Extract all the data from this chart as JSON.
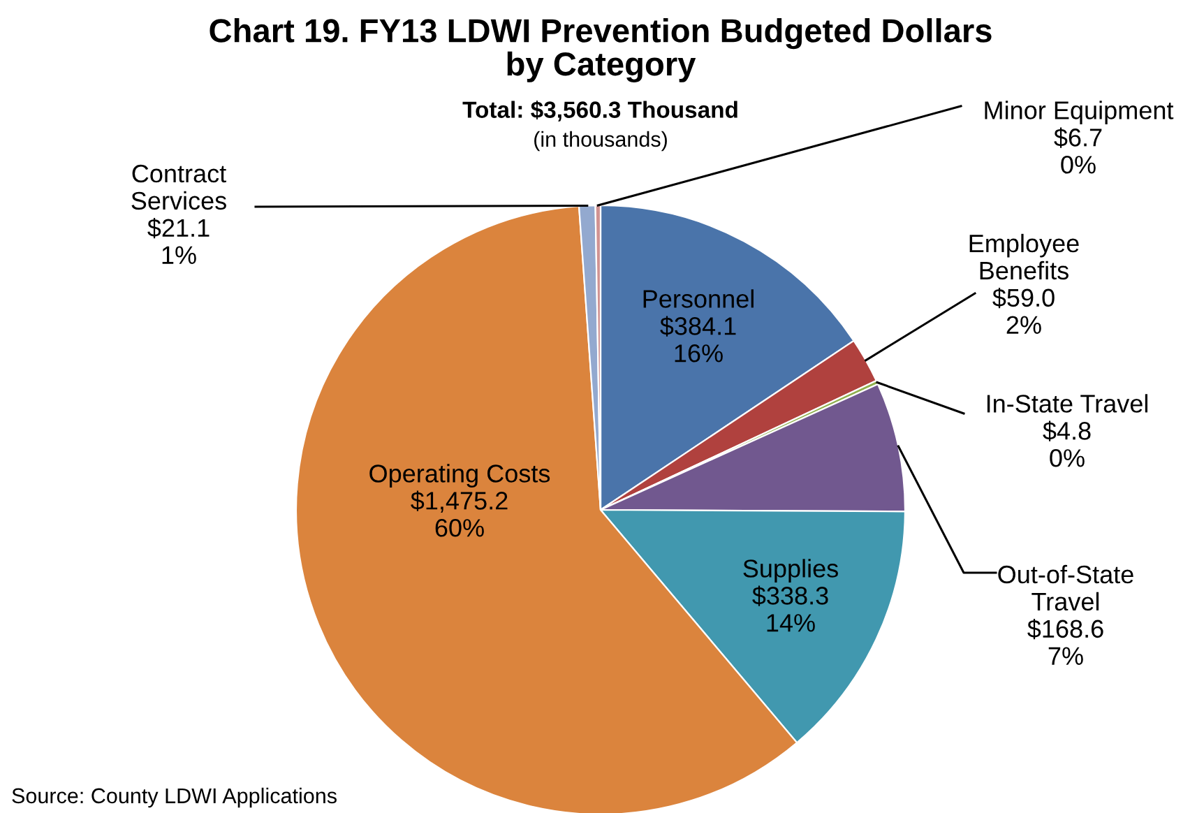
{
  "chart_data": {
    "type": "pie",
    "title": "Chart 19. FY13 LDWI Prevention Budgeted Dollars\nby Category",
    "subtitle": "Total: $3,560.3 Thousand",
    "annotations": [
      "(in thousands)",
      "Source: County LDWI Applications"
    ],
    "categories": [
      "Personnel",
      "Employee\nBenefits",
      "In-State Travel",
      "Out-of-State\nTravel",
      "Supplies",
      "Operating Costs",
      "Contract\nServices",
      "Minor Equipment"
    ],
    "values": [
      384.1,
      59.0,
      4.8,
      168.6,
      338.3,
      1475.2,
      21.1,
      6.7
    ],
    "value_labels": [
      "$384.1\n16%",
      "$59.0\n2%",
      "$4.8\n0%",
      "$168.6\n7%",
      "$338.3\n14%",
      "$1,475.2\n60%",
      "$21.1\n1%",
      "$6.7\n0%"
    ],
    "colors": [
      "#4a74aa",
      "#b0413e",
      "#8fb04e",
      "#71588f",
      "#4198af",
      "#db843d",
      "#93a9cf",
      "#d19392"
    ],
    "legend": false
  }
}
